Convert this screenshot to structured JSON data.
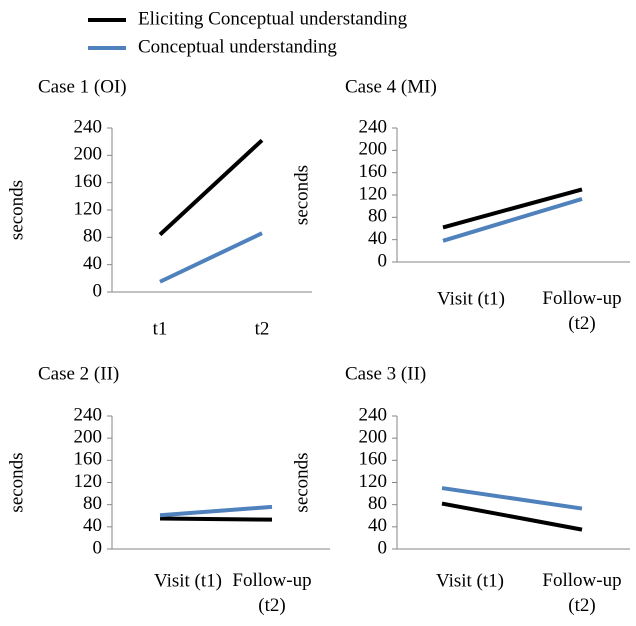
{
  "chart_data": [
    {
      "type": "line",
      "title": "Case 1 (OI)",
      "y_label": "seconds",
      "categories": [
        "t1",
        "t2"
      ],
      "series": [
        {
          "name": "Eliciting Conceptual understanding",
          "color": "#000000",
          "values": [
            84,
            222
          ]
        },
        {
          "name": "Conceptual understanding",
          "color": "#4f81bd",
          "values": [
            15,
            86
          ]
        }
      ],
      "ylim": [
        0,
        240
      ],
      "yticks": [
        0,
        40,
        80,
        120,
        160,
        200,
        240
      ]
    },
    {
      "type": "line",
      "title": "Case 4 (MI)",
      "y_label": "seconds",
      "categories": [
        "Visit (t1)",
        "Follow-up (t2)"
      ],
      "series": [
        {
          "name": "Eliciting Conceptual understanding",
          "color": "#000000",
          "values": [
            62,
            130
          ]
        },
        {
          "name": "Conceptual understanding",
          "color": "#4f81bd",
          "values": [
            38,
            113
          ]
        }
      ],
      "ylim": [
        0,
        240
      ],
      "yticks": [
        0,
        40,
        80,
        120,
        160,
        200,
        240
      ]
    },
    {
      "type": "line",
      "title": "Case 2 (II)",
      "y_label": "seconds",
      "categories": [
        "Visit (t1)",
        "Follow-up (t2)"
      ],
      "series": [
        {
          "name": "Eliciting Conceptual understanding",
          "color": "#000000",
          "values": [
            55,
            53
          ]
        },
        {
          "name": "Conceptual understanding",
          "color": "#4f81bd",
          "values": [
            61,
            76
          ]
        }
      ],
      "ylim": [
        0,
        240
      ],
      "yticks": [
        0,
        40,
        80,
        120,
        160,
        200,
        240
      ]
    },
    {
      "type": "line",
      "title": "Case 3 (II)",
      "y_label": "seconds",
      "categories": [
        "Visit (t1)",
        "Follow-up (t2)"
      ],
      "series": [
        {
          "name": "Eliciting Conceptual understanding",
          "color": "#000000",
          "values": [
            82,
            35
          ]
        },
        {
          "name": "Conceptual understanding",
          "color": "#4f81bd",
          "values": [
            110,
            73
          ]
        }
      ],
      "ylim": [
        0,
        240
      ],
      "yticks": [
        0,
        40,
        80,
        120,
        160,
        200,
        240
      ]
    }
  ]
}
